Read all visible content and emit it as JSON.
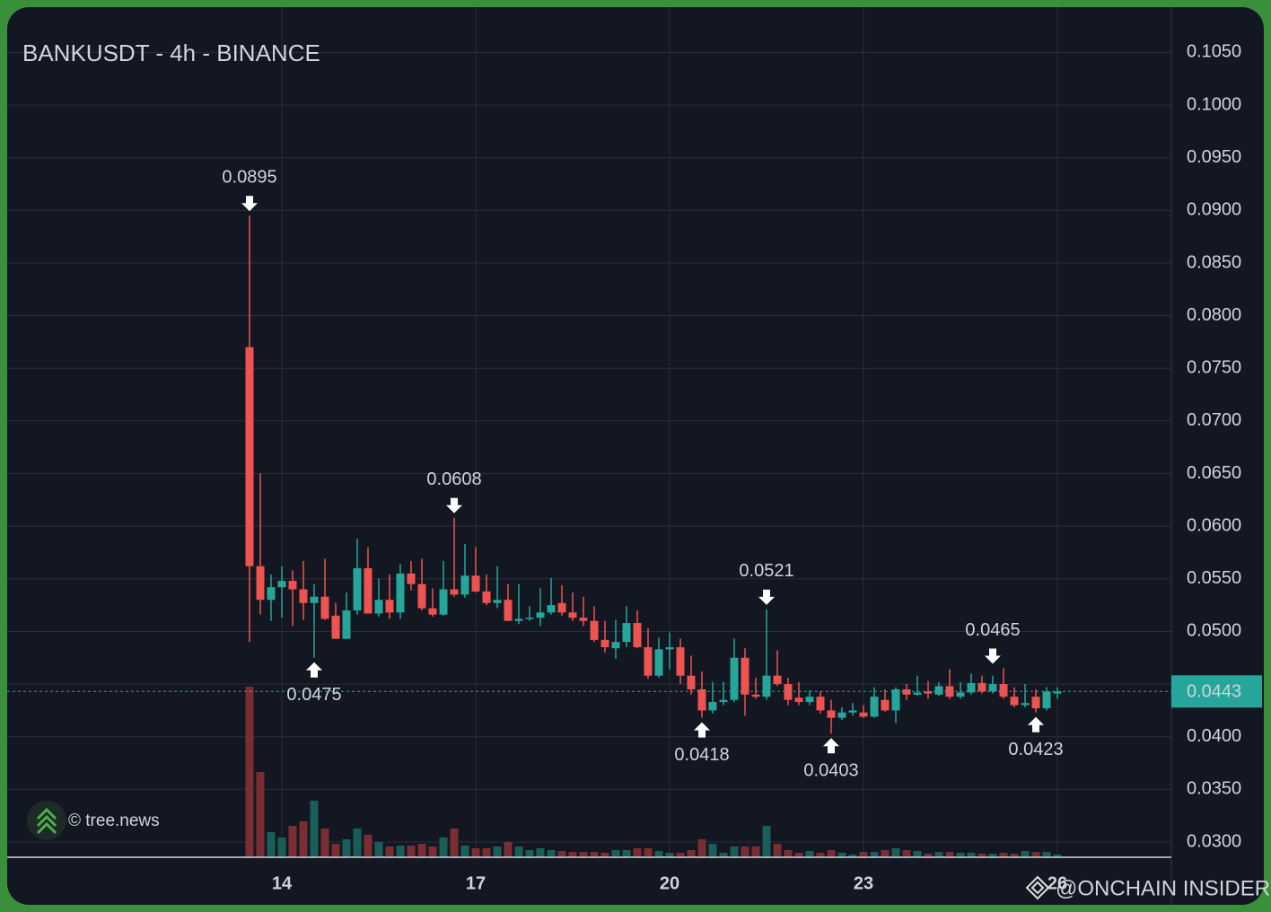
{
  "chart_data": {
    "type": "candlestick",
    "title": "BANKUSDT - 4h - BINANCE",
    "x": [
      13.5,
      13.6667,
      13.8333,
      14,
      14.1667,
      14.3333,
      14.5,
      14.6667,
      14.8333,
      15,
      15.1667,
      15.3333,
      15.5,
      15.6667,
      15.8333,
      16,
      16.1667,
      16.3333,
      16.5,
      16.6667,
      16.8333,
      17,
      17.1667,
      17.3333,
      17.5,
      17.6667,
      17.8333,
      18,
      18.1667,
      18.3333,
      18.5,
      18.6667,
      18.8333,
      19,
      19.1667,
      19.3333,
      19.5,
      19.6667,
      19.8333,
      20,
      20.1667,
      20.3333,
      20.5,
      20.6667,
      20.8333,
      21,
      21.1667,
      21.3333,
      21.5,
      21.6667,
      21.8333,
      22,
      22.1667,
      22.3333,
      22.5,
      22.6667,
      22.8333,
      23,
      23.1667,
      23.3333,
      23.5,
      23.6667,
      23.8333,
      24,
      24.1667,
      24.3333,
      24.5,
      24.6667,
      24.8333,
      25,
      25.1667,
      25.3333,
      25.5,
      25.6667,
      25.8333,
      26
    ],
    "open": [
      0.077,
      0.0562,
      0.053,
      0.0542,
      0.0548,
      0.054,
      0.0527,
      0.0533,
      0.0515,
      0.0493,
      0.052,
      0.056,
      0.0517,
      0.053,
      0.0518,
      0.0555,
      0.0545,
      0.0522,
      0.0516,
      0.054,
      0.0535,
      0.0553,
      0.0538,
      0.0527,
      0.053,
      0.051,
      0.0512,
      0.0513,
      0.0518,
      0.0527,
      0.0518,
      0.0513,
      0.051,
      0.0492,
      0.0484,
      0.049,
      0.0508,
      0.0485,
      0.0458,
      0.0483,
      0.0485,
      0.0458,
      0.0445,
      0.0425,
      0.0433,
      0.0435,
      0.0475,
      0.044,
      0.0438,
      0.0458,
      0.045,
      0.0437,
      0.0433,
      0.0438,
      0.0425,
      0.0418,
      0.0423,
      0.0423,
      0.0419,
      0.0435,
      0.0425,
      0.0445,
      0.044,
      0.0443,
      0.044,
      0.0448,
      0.0438,
      0.0442,
      0.0451,
      0.0443,
      0.045,
      0.0438,
      0.043,
      0.0438,
      0.0427,
      0.0441
    ],
    "high": [
      0.0895,
      0.065,
      0.0554,
      0.0562,
      0.0558,
      0.0567,
      0.0545,
      0.0569,
      0.0527,
      0.0537,
      0.0588,
      0.058,
      0.055,
      0.0554,
      0.0564,
      0.0567,
      0.0569,
      0.0541,
      0.0567,
      0.0608,
      0.0583,
      0.058,
      0.0554,
      0.0562,
      0.0545,
      0.0545,
      0.0524,
      0.0541,
      0.0551,
      0.0544,
      0.0537,
      0.0533,
      0.0524,
      0.051,
      0.0511,
      0.0524,
      0.052,
      0.0503,
      0.0494,
      0.0499,
      0.0493,
      0.0477,
      0.0462,
      0.0452,
      0.0452,
      0.0493,
      0.0484,
      0.0456,
      0.0521,
      0.0482,
      0.0456,
      0.0452,
      0.0444,
      0.0443,
      0.0435,
      0.0428,
      0.0432,
      0.043,
      0.0447,
      0.0445,
      0.0447,
      0.045,
      0.0458,
      0.0453,
      0.0452,
      0.0464,
      0.0452,
      0.046,
      0.0458,
      0.0458,
      0.0465,
      0.0447,
      0.045,
      0.0445,
      0.0447,
      0.0447
    ],
    "low": [
      0.049,
      0.0516,
      0.051,
      0.0513,
      0.0505,
      0.0511,
      0.0475,
      0.0511,
      0.0493,
      0.0493,
      0.0516,
      0.052,
      0.0514,
      0.0512,
      0.0512,
      0.0539,
      0.052,
      0.0514,
      0.0515,
      0.0533,
      0.0532,
      0.0537,
      0.0525,
      0.0522,
      0.051,
      0.0507,
      0.051,
      0.0505,
      0.0516,
      0.0515,
      0.051,
      0.0505,
      0.049,
      0.048,
      0.0474,
      0.0485,
      0.0484,
      0.0455,
      0.0456,
      0.0464,
      0.045,
      0.044,
      0.0418,
      0.0422,
      0.043,
      0.0433,
      0.042,
      0.0436,
      0.0435,
      0.0448,
      0.043,
      0.043,
      0.043,
      0.0422,
      0.0403,
      0.0416,
      0.042,
      0.0418,
      0.0418,
      0.0424,
      0.0413,
      0.0435,
      0.0439,
      0.0436,
      0.0439,
      0.0436,
      0.0436,
      0.044,
      0.0441,
      0.0441,
      0.0436,
      0.0428,
      0.0428,
      0.0423,
      0.0425,
      0.0436
    ],
    "close": [
      0.0562,
      0.053,
      0.0542,
      0.0548,
      0.054,
      0.0527,
      0.0533,
      0.0512,
      0.0493,
      0.052,
      0.056,
      0.0517,
      0.053,
      0.0518,
      0.0555,
      0.0545,
      0.0522,
      0.0516,
      0.054,
      0.0535,
      0.0553,
      0.0538,
      0.0527,
      0.053,
      0.051,
      0.0512,
      0.0513,
      0.0518,
      0.0525,
      0.0518,
      0.0513,
      0.051,
      0.0492,
      0.0485,
      0.049,
      0.0508,
      0.0485,
      0.0458,
      0.0483,
      0.0485,
      0.0458,
      0.0445,
      0.0425,
      0.0433,
      0.0435,
      0.0475,
      0.044,
      0.0438,
      0.0458,
      0.045,
      0.0435,
      0.0433,
      0.0438,
      0.0425,
      0.0418,
      0.0423,
      0.0425,
      0.0419,
      0.0438,
      0.0425,
      0.0445,
      0.044,
      0.0442,
      0.0441,
      0.0448,
      0.0438,
      0.0442,
      0.0451,
      0.0443,
      0.045,
      0.0438,
      0.043,
      0.0432,
      0.0427,
      0.0443,
      0.0443
    ],
    "volume": [
      190,
      95,
      28,
      22,
      35,
      40,
      63,
      32,
      15,
      20,
      32,
      25,
      17,
      12,
      13,
      13,
      15,
      12,
      22,
      32,
      13,
      10,
      10,
      12,
      17,
      12,
      8,
      10,
      8,
      7,
      6,
      6,
      6,
      5,
      8,
      8,
      10,
      10,
      7,
      5,
      5,
      8,
      20,
      15,
      5,
      12,
      12,
      12,
      35,
      15,
      8,
      5,
      7,
      5,
      8,
      5,
      3,
      6,
      6,
      8,
      10,
      8,
      7,
      4,
      6,
      6,
      5,
      5,
      4,
      4,
      5,
      4,
      7,
      6,
      6,
      3
    ],
    "up_color": "#26a69a",
    "down_color": "#ef5350",
    "up_volume_color": "#1a5e5a",
    "down_volume_color": "#7a2e33",
    "xlim": [
      9.75,
      27.764
    ],
    "xticks": [
      14,
      17,
      20,
      23,
      26
    ],
    "ylim": [
      0.02855,
      0.1093
    ],
    "yticks": [
      {
        "value": 0.03,
        "label": "0.0300"
      },
      {
        "value": 0.035,
        "label": "0.0350"
      },
      {
        "value": 0.04,
        "label": "0.0400"
      },
      {
        "value": 0.045,
        "label": "0.0450"
      },
      {
        "value": 0.05,
        "label": "0.0500"
      },
      {
        "value": 0.055,
        "label": "0.0550"
      },
      {
        "value": 0.06,
        "label": "0.0600"
      },
      {
        "value": 0.065,
        "label": "0.0650"
      },
      {
        "value": 0.07,
        "label": "0.0700"
      },
      {
        "value": 0.075,
        "label": "0.0750"
      },
      {
        "value": 0.08,
        "label": "0.0800"
      },
      {
        "value": 0.085,
        "label": "0.0850"
      },
      {
        "value": 0.09,
        "label": "0.0900"
      },
      {
        "value": 0.095,
        "label": "0.0950"
      },
      {
        "value": 0.1,
        "label": "0.1000"
      },
      {
        "value": 0.105,
        "label": "0.1050"
      }
    ],
    "grid": true,
    "last_price": {
      "value": 0.0443,
      "label": "0.0443",
      "color": "#26a69a"
    },
    "annotations": [
      {
        "x": 13.5,
        "value": 0.0895,
        "label": "0.0895"
      },
      {
        "x": 14.5,
        "value": 0.0475,
        "label": "0.0475"
      },
      {
        "x": 16.6667,
        "value": 0.0608,
        "label": "0.0608"
      },
      {
        "x": 20.5,
        "value": 0.0418,
        "label": "0.0418"
      },
      {
        "x": 21.5,
        "value": 0.0521,
        "label": "0.0521"
      },
      {
        "x": 22.5,
        "value": 0.0403,
        "label": "0.0403"
      },
      {
        "x": 25,
        "value": 0.0465,
        "label": "0.0465"
      },
      {
        "x": 25.6667,
        "value": 0.0423,
        "label": "0.0423"
      }
    ],
    "watermarks": [
      "© tree.news",
      "@ONCHAIN INSIDER"
    ]
  }
}
